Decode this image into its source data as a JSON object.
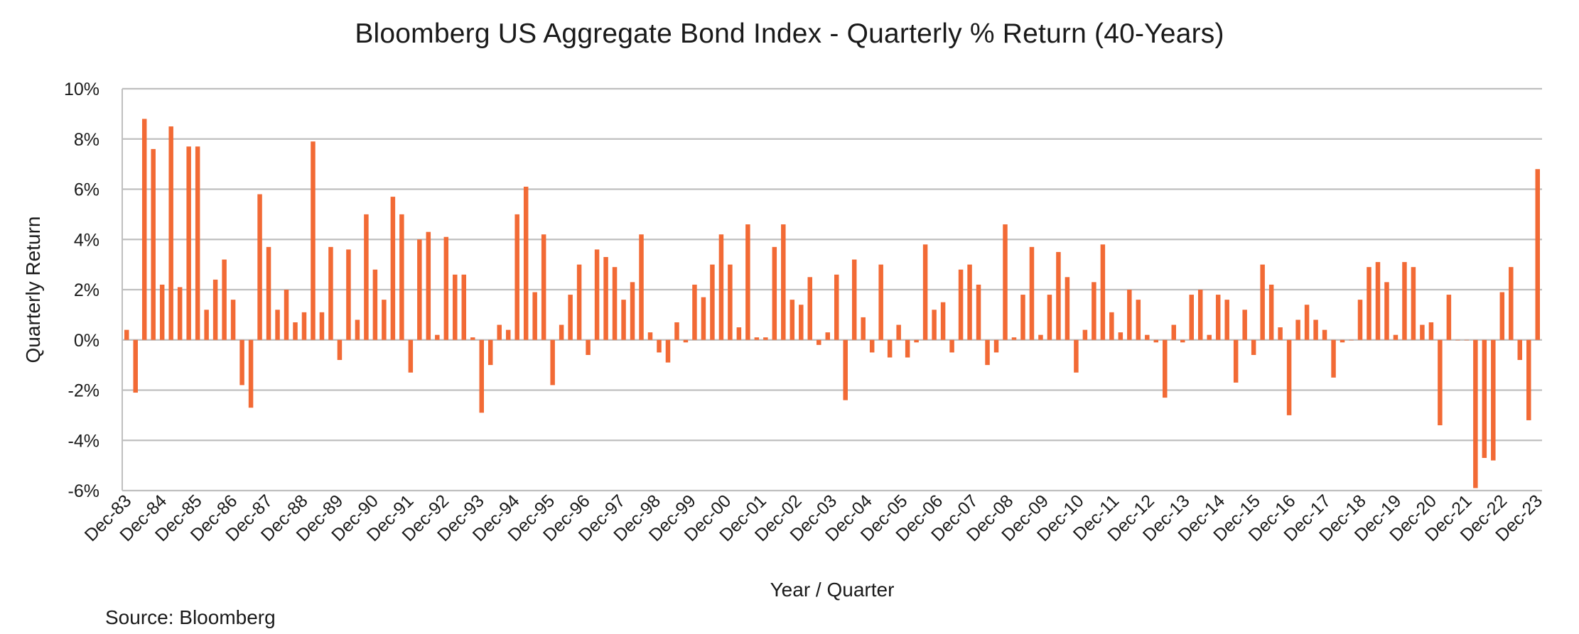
{
  "chart_data": {
    "type": "bar",
    "title": "Bloomberg US Aggregate Bond Index - Quarterly % Return (40-Years)",
    "xlabel": "Year / Quarter",
    "ylabel": "Quarterly Return",
    "source": "Source: Bloomberg",
    "ylim": [
      -6,
      10
    ],
    "yticks": [
      "10%",
      "8%",
      "6%",
      "4%",
      "2%",
      "0%",
      "-2%",
      "-4%",
      "-6%"
    ],
    "ytick_values": [
      10,
      8,
      6,
      4,
      2,
      0,
      -2,
      -4,
      -6
    ],
    "grid": true,
    "legend": "none",
    "bar_color": "#F26A35",
    "xtick_labels": [
      "Dec-83",
      "Dec-84",
      "Dec-85",
      "Dec-86",
      "Dec-87",
      "Dec-88",
      "Dec-89",
      "Dec-90",
      "Dec-91",
      "Dec-92",
      "Dec-93",
      "Dec-94",
      "Dec-95",
      "Dec-96",
      "Dec-97",
      "Dec-98",
      "Dec-99",
      "Dec-00",
      "Dec-01",
      "Dec-02",
      "Dec-03",
      "Dec-04",
      "Dec-05",
      "Dec-06",
      "Dec-07",
      "Dec-08",
      "Dec-09",
      "Dec-10",
      "Dec-11",
      "Dec-12",
      "Dec-13",
      "Dec-14",
      "Dec-15",
      "Dec-16",
      "Dec-17",
      "Dec-18",
      "Dec-19",
      "Dec-20",
      "Dec-21",
      "Dec-22",
      "Dec-23"
    ],
    "values": [
      0.4,
      -2.1,
      8.8,
      7.6,
      2.2,
      8.5,
      2.1,
      7.7,
      7.7,
      1.2,
      2.4,
      3.2,
      1.6,
      -1.8,
      -2.7,
      5.8,
      3.7,
      1.2,
      2.0,
      0.7,
      1.1,
      7.9,
      1.1,
      3.7,
      -0.8,
      3.6,
      0.8,
      5.0,
      2.8,
      1.6,
      5.7,
      5.0,
      -1.3,
      4.0,
      4.3,
      0.2,
      4.1,
      2.6,
      2.6,
      0.1,
      -2.9,
      -1.0,
      0.6,
      0.4,
      5.0,
      6.1,
      1.9,
      4.2,
      -1.8,
      0.6,
      1.8,
      3.0,
      -0.6,
      3.6,
      3.3,
      2.9,
      1.6,
      2.3,
      4.2,
      0.3,
      -0.5,
      -0.9,
      0.7,
      -0.1,
      2.2,
      1.7,
      3.0,
      4.2,
      3.0,
      0.5,
      4.6,
      0.1,
      0.1,
      3.7,
      4.6,
      1.6,
      1.4,
      2.5,
      -0.2,
      0.3,
      2.6,
      -2.4,
      3.2,
      0.9,
      -0.5,
      3.0,
      -0.7,
      0.6,
      -0.7,
      -0.1,
      3.8,
      1.2,
      1.5,
      -0.5,
      2.8,
      3.0,
      2.2,
      -1.0,
      -0.5,
      4.6,
      0.1,
      1.8,
      3.7,
      0.2,
      1.8,
      3.5,
      2.5,
      -1.3,
      0.4,
      2.3,
      3.8,
      1.1,
      0.3,
      2.0,
      1.6,
      0.2,
      -0.1,
      -2.3,
      0.6,
      -0.1,
      1.8,
      2.0,
      0.2,
      1.8,
      1.6,
      -1.7,
      1.2,
      -0.6,
      3.0,
      2.2,
      0.5,
      -3.0,
      0.8,
      1.4,
      0.8,
      0.4,
      -1.5,
      -0.1,
      0.0,
      1.6,
      2.9,
      3.1,
      2.3,
      0.2,
      3.1,
      2.9,
      0.6,
      0.7,
      -3.4,
      1.8,
      0.0,
      0.0,
      -5.9,
      -4.7,
      -4.8,
      1.9,
      2.9,
      -0.8,
      -3.2,
      6.8
    ]
  }
}
